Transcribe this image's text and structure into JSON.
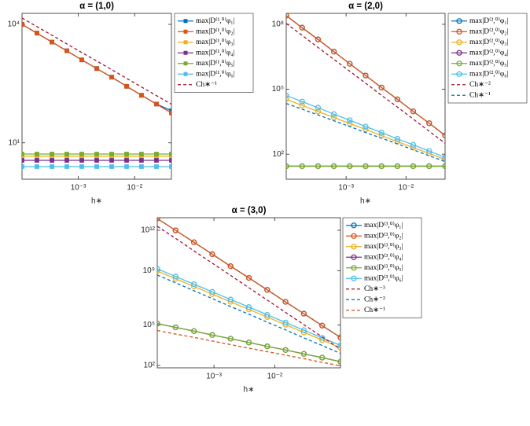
{
  "chart_data": [
    {
      "type": "line",
      "title": "α = (1,0)",
      "xlabel": "h∗",
      "xscale": "log",
      "yscale": "log",
      "marker": "square",
      "legend": "northeast-outside",
      "x": [
        0.0001,
        0.000184,
        0.00034,
        0.000625,
        0.00115,
        0.00212,
        0.00391,
        0.0072,
        0.0132,
        0.0244,
        0.045
      ],
      "xlim": [
        0.0001,
        0.045
      ],
      "ylim": [
        1.2,
        19000
      ],
      "xticks": [
        {
          "value": 0.001,
          "label": "10⁻³"
        },
        {
          "value": 0.01,
          "label": "10⁻²"
        }
      ],
      "yticks": [
        {
          "value": 10,
          "label": "10¹"
        },
        {
          "value": 10000,
          "label": "10⁴"
        }
      ],
      "series": [
        {
          "name": "max|D⁽¹,⁰⁾φ₁|",
          "color": "#0072BD",
          "values": [
            10000,
            6000,
            3550,
            2140,
            1260,
            760,
            460,
            270,
            160,
            96,
            65
          ]
        },
        {
          "name": "max|D⁽¹,⁰⁾φ₂|",
          "color": "#D95319",
          "values": [
            10000,
            6000,
            3550,
            2140,
            1260,
            760,
            460,
            270,
            160,
            96,
            57
          ]
        },
        {
          "name": "max|D⁽¹,⁰⁾φ₃|",
          "color": "#EDB120",
          "values": [
            4.6,
            4.6,
            4.6,
            4.6,
            4.6,
            4.6,
            4.6,
            4.6,
            4.6,
            4.6,
            4.6
          ]
        },
        {
          "name": "max|D⁽¹,⁰⁾φ₄|",
          "color": "#7E2F8E",
          "values": [
            3.6,
            3.6,
            3.6,
            3.6,
            3.6,
            3.6,
            3.6,
            3.6,
            3.6,
            3.6,
            3.6
          ]
        },
        {
          "name": "max|D⁽¹,⁰⁾φ₅|",
          "color": "#77AC30",
          "values": [
            5.2,
            5.2,
            5.2,
            5.2,
            5.2,
            5.2,
            5.2,
            5.2,
            5.2,
            5.2,
            5.2
          ]
        },
        {
          "name": "max|D⁽¹,⁰⁾φ₆|",
          "color": "#4DBEEE",
          "values": [
            2.5,
            2.5,
            2.5,
            2.5,
            2.5,
            2.5,
            2.5,
            2.5,
            2.5,
            2.5,
            2.5
          ]
        },
        {
          "name": "Ch∗⁻¹",
          "color": "#A2142F",
          "dashed": true,
          "values": [
            14500,
            8770,
            5310,
            3210,
            1940,
            1180,
            711,
            430,
            260,
            157,
            95
          ]
        }
      ]
    },
    {
      "type": "line",
      "title": "α = (2,0)",
      "xlabel": "h∗",
      "xscale": "log",
      "yscale": "log",
      "marker": "circle",
      "legend": "northeast-outside",
      "x": [
        0.0001,
        0.000184,
        0.00034,
        0.000625,
        0.00115,
        0.00212,
        0.00391,
        0.0072,
        0.0132,
        0.0244,
        0.045
      ],
      "xlim": [
        0.0001,
        0.045
      ],
      "ylim": [
        7,
        320000000
      ],
      "xticks": [
        {
          "value": 0.001,
          "label": "10⁻³"
        },
        {
          "value": 0.01,
          "label": "10⁻²"
        }
      ],
      "yticks": [
        {
          "value": 100,
          "label": "10²"
        },
        {
          "value": 100000,
          "label": "10⁵"
        },
        {
          "value": 100000000,
          "label": "10⁸"
        }
      ],
      "series": [
        {
          "name": "max|D⁽²,⁰⁾φ₁|",
          "color": "#0072BD",
          "values": [
            250000000,
            70000000,
            20000000,
            5500000,
            1500000,
            430000,
            120000,
            34000,
            9500,
            2700,
            740
          ]
        },
        {
          "name": "max|D⁽²,⁰⁾φ₂|",
          "color": "#D95319",
          "values": [
            250000000,
            70000000,
            20000000,
            5500000,
            1500000,
            430000,
            120000,
            34000,
            9500,
            2700,
            740
          ]
        },
        {
          "name": "max|D⁽²,⁰⁾φ₃|",
          "color": "#EDB120",
          "values": [
            34000,
            18000,
            9400,
            5000,
            2600,
            1400,
            720,
            380,
            200,
            110,
            56
          ]
        },
        {
          "name": "max|D⁽²,⁰⁾φ₄|",
          "color": "#7E2F8E",
          "values": [
            28,
            28,
            28,
            28,
            28,
            28,
            28,
            28,
            28,
            28,
            28
          ]
        },
        {
          "name": "max|D⁽²,⁰⁾φ₅|",
          "color": "#77AC30",
          "values": [
            28,
            28,
            28,
            28,
            28,
            28,
            28,
            28,
            28,
            28,
            28
          ]
        },
        {
          "name": "max|D⁽²,⁰⁾φ₆|",
          "color": "#4DBEEE",
          "values": [
            51000,
            27000,
            14000,
            7100,
            3700,
            1900,
            1000,
            510,
            270,
            140,
            71
          ]
        },
        {
          "name": "Ch∗⁻²",
          "color": "#A2142F",
          "dashed": true,
          "values": [
            110000000,
            31000000,
            8500000,
            2400000,
            680000,
            190000,
            52000,
            15000,
            4200,
            1150,
            320
          ]
        },
        {
          "name": "Ch∗⁻¹",
          "color": "#0072BD",
          "dashed": true,
          "values": [
            22000,
            12000,
            6500,
            3500,
            1900,
            1000,
            550,
            300,
            160,
            85,
            46
          ]
        }
      ]
    },
    {
      "type": "line",
      "title": "α = (3,0)",
      "xlabel": "h∗",
      "xscale": "log",
      "yscale": "log",
      "marker": "circle",
      "legend": "northeast-outside",
      "x": [
        0.000117,
        0.000234,
        0.000469,
        0.000938,
        0.001875,
        0.00375,
        0.0075,
        0.015,
        0.03,
        0.06,
        0.12
      ],
      "xlim": [
        0.000117,
        0.12
      ],
      "ylim": [
        67,
        8500000000000
      ],
      "xticks": [
        {
          "value": 0.001,
          "label": "10⁻³"
        },
        {
          "value": 0.01,
          "label": "10⁻²"
        }
      ],
      "yticks": [
        {
          "value": 100,
          "label": "10²"
        },
        {
          "value": 100000,
          "label": "10⁵"
        },
        {
          "value": 1000000000,
          "label": "10⁹"
        },
        {
          "value": 1000000000000,
          "label": "10¹²"
        }
      ],
      "series": [
        {
          "name": "max|D⁽³,⁰⁾φ₁|",
          "color": "#0072BD",
          "values": [
            7400000000000,
            980000000000,
            130000000000,
            17000000000,
            2200000000,
            300000000,
            39000000,
            5100000,
            680000,
            89000,
            12000
          ]
        },
        {
          "name": "max|D⁽³,⁰⁾φ₂|",
          "color": "#D95319",
          "values": [
            7400000000000,
            980000000000,
            130000000000,
            17000000000,
            2200000000,
            300000000,
            39000000,
            5100000,
            680000,
            89000,
            12000
          ]
        },
        {
          "name": "max|D⁽³,⁰⁾φ₃|",
          "color": "#EDB120",
          "values": [
            950000000,
            260000000,
            70000000,
            19000000,
            5100000,
            1400000,
            380000,
            103000,
            28000,
            7600,
            2000
          ]
        },
        {
          "name": "max|D⁽³,⁰⁾φ₄|",
          "color": "#7E2F8E",
          "values": [
            126000,
            66000,
            35000,
            18000,
            9600,
            5000,
            2600,
            1400,
            720,
            380,
            190
          ]
        },
        {
          "name": "max|D⁽³,⁰⁾φ₅|",
          "color": "#77AC30",
          "values": [
            126000,
            66000,
            35000,
            18000,
            9600,
            5000,
            2600,
            1400,
            720,
            380,
            190
          ]
        },
        {
          "name": "max|D⁽³,⁰⁾φ₆|",
          "color": "#4DBEEE",
          "values": [
            1400000000,
            380000000,
            103000000,
            28000000,
            7600000,
            2100000,
            560000,
            150000,
            41000,
            11000,
            3100
          ]
        },
        {
          "name": "Ch∗⁻³",
          "color": "#A2142F",
          "dashed": true,
          "values": [
            2000000000000,
            250000000000,
            30000000000,
            3700000000,
            460000000,
            56000000,
            6900000,
            850000,
            105000,
            13000,
            1600
          ]
        },
        {
          "name": "Ch∗⁻²",
          "color": "#0072BD",
          "dashed": true,
          "values": [
            490000000,
            130000000,
            34000000,
            8900000,
            2300000,
            620000,
            160000,
            43000,
            11000,
            3000,
            780
          ]
        },
        {
          "name": "Ch∗⁻¹",
          "color": "#D95319",
          "dashed": true,
          "values": [
            39000,
            21000,
            12000,
            6500,
            3500,
            1900,
            1050,
            580,
            320,
            170,
            95
          ]
        }
      ]
    }
  ]
}
